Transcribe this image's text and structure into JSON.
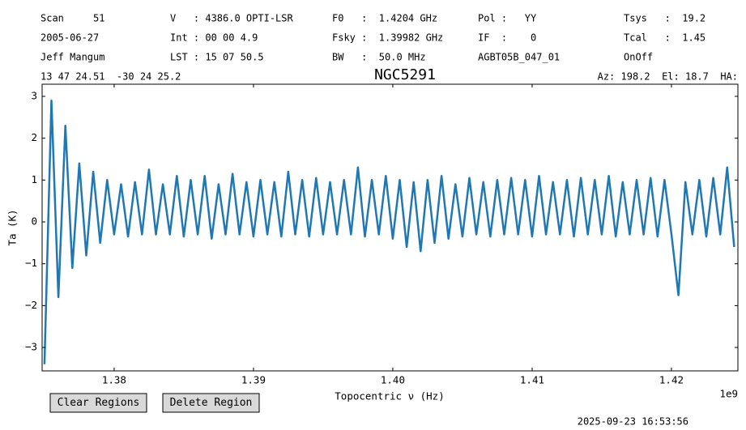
{
  "chart_data": {
    "type": "line",
    "title": "NGC5291",
    "header": [
      [
        "Scan     51",
        "V   : 4386.0 OPTI-LSR",
        "F0   :  1.4204 GHz",
        "Pol :   YY",
        "Tsys   :  19.2"
      ],
      [
        "2005-06-27",
        "Int : 00 00 4.9",
        "Fsky :  1.39982 GHz",
        "IF  :    0",
        "Tcal   :  1.45"
      ],
      [
        "Jeff Mangum",
        "LST : 15 07 50.5",
        "BW   :  50.0 MHz",
        "AGBT05B_047_01",
        "OnOff"
      ]
    ],
    "coordinates": "13 47 24.51  -30 24 25.2",
    "pointing": "Az: 198.2  El: 18.7  HA:",
    "x_label": "Topocentric ν (Hz)",
    "x_offset_label": "1e9",
    "y_label": "Ta (K)",
    "xlim": [
      1374830000,
      1424770000
    ],
    "ylim": [
      -3.56,
      3.29
    ],
    "xticks": [
      {
        "value": 1380000000,
        "label": "1.38"
      },
      {
        "value": 1390000000,
        "label": "1.39"
      },
      {
        "value": 1400000000,
        "label": "1.40"
      },
      {
        "value": 1410000000,
        "label": "1.41"
      },
      {
        "value": 1420000000,
        "label": "1.42"
      }
    ],
    "yticks": [
      {
        "value": -3,
        "label": "−3"
      },
      {
        "value": -2,
        "label": "−2"
      },
      {
        "value": -1,
        "label": "−1"
      },
      0,
      1,
      2,
      3
    ],
    "x": [
      1375000000,
      1375500000,
      1376000000,
      1376500000,
      1377000000,
      1377500000,
      1378000000,
      1378500000,
      1379000000,
      1379500000,
      1380000000,
      1380500000,
      1381000000,
      1381500000,
      1382000000,
      1382500000,
      1383000000,
      1383500000,
      1384000000,
      1384500000,
      1385000000,
      1385500000,
      1386000000,
      1386500000,
      1387000000,
      1387500000,
      1388000000,
      1388500000,
      1389000000,
      1389500000,
      1390000000,
      1390500000,
      1391000000,
      1391500000,
      1392000000,
      1392500000,
      1393000000,
      1393500000,
      1394000000,
      1394500000,
      1395000000,
      1395500000,
      1396000000,
      1396500000,
      1397000000,
      1397500000,
      1398000000,
      1398500000,
      1399000000,
      1399500000,
      1400000000,
      1400500000,
      1401000000,
      1401500000,
      1402000000,
      1402500000,
      1403000000,
      1403500000,
      1404000000,
      1404500000,
      1405000000,
      1405500000,
      1406000000,
      1406500000,
      1407000000,
      1407500000,
      1408000000,
      1408500000,
      1409000000,
      1409500000,
      1410000000,
      1410500000,
      1411000000,
      1411500000,
      1412000000,
      1412500000,
      1413000000,
      1413500000,
      1414000000,
      1414500000,
      1415000000,
      1415500000,
      1416000000,
      1416500000,
      1417000000,
      1417500000,
      1418000000,
      1418500000,
      1419000000,
      1419500000,
      1420000000,
      1420500000,
      1421000000,
      1421500000,
      1422000000,
      1422500000,
      1423000000,
      1423500000,
      1424000000,
      1424500000
    ],
    "series": [
      {
        "color": "#1f77b4",
        "values": [
          -3.4,
          2.9,
          -1.8,
          2.3,
          -1.1,
          1.4,
          -0.8,
          1.2,
          -0.5,
          1.0,
          -0.3,
          0.9,
          -0.35,
          0.95,
          -0.3,
          1.25,
          -0.3,
          0.9,
          -0.3,
          1.1,
          -0.35,
          1.0,
          -0.3,
          1.1,
          -0.4,
          0.9,
          -0.3,
          1.15,
          -0.3,
          0.95,
          -0.35,
          1.0,
          -0.3,
          0.95,
          -0.35,
          1.2,
          -0.3,
          1.0,
          -0.35,
          1.05,
          -0.3,
          0.95,
          -0.3,
          1.0,
          -0.3,
          1.3,
          -0.35,
          1.0,
          -0.3,
          1.1,
          -0.4,
          1.0,
          -0.6,
          0.95,
          -0.7,
          1.0,
          -0.5,
          1.1,
          -0.4,
          0.9,
          -0.35,
          1.05,
          -0.3,
          0.95,
          -0.35,
          1.0,
          -0.3,
          1.05,
          -0.3,
          1.0,
          -0.35,
          1.1,
          -0.3,
          0.95,
          -0.3,
          1.0,
          -0.35,
          1.05,
          -0.3,
          1.0,
          -0.3,
          1.1,
          -0.35,
          0.95,
          -0.3,
          1.0,
          -0.3,
          1.05,
          -0.35,
          1.0,
          -0.3,
          -1.75,
          0.95,
          -0.3,
          1.0,
          -0.35,
          1.05,
          -0.3,
          1.3,
          -0.6
        ]
      }
    ],
    "buttons": [
      "Clear Regions",
      "Delete Region"
    ],
    "timestamp": "2025-09-23 16:53:56"
  }
}
